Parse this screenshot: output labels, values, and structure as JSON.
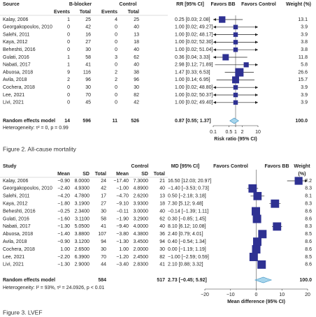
{
  "chart_data": [
    {
      "type": "forest",
      "caption": "Figure 2. All-cause mortality",
      "headers": {
        "study": "Source",
        "group1": "B-blocker",
        "group2": "Control",
        "effect": "RR [95% CI]",
        "favors_left": "Favors BB",
        "favors_right": "Favors Control",
        "weight": "Weight (%)"
      },
      "subheaders": [
        "Events",
        "Total",
        "Events",
        "Total"
      ],
      "studies": [
        {
          "name": "Kalay, 2006",
          "cells": [
            1,
            25,
            4,
            25
          ],
          "estimate": 0.25,
          "lower": 0.03,
          "upper": 2.08,
          "label": "0.25 [0.03; 2.08]",
          "weight": 13.1
        },
        {
          "name": "Georgakopoulos, 2010",
          "cells": [
            0,
            42,
            0,
            40
          ],
          "estimate": 1,
          "lower": 0.02,
          "upper": 49.27,
          "label": "1.00 [0.02; 49.27]",
          "weight": 3.9
        },
        {
          "name": "Salehi, 2011",
          "cells": [
            0,
            16,
            0,
            13
          ],
          "estimate": 1,
          "lower": 0.02,
          "upper": 48.17,
          "label": "1.00 [0.02; 48.17]",
          "weight": 3.9
        },
        {
          "name": "Kaya, 2012",
          "cells": [
            0,
            27,
            0,
            18
          ],
          "estimate": 1,
          "lower": 0.02,
          "upper": 52.3,
          "label": "1.00 [0.02; 52.30]",
          "weight": 3.8
        },
        {
          "name": "Beheshti, 2016",
          "cells": [
            0,
            30,
            0,
            40
          ],
          "estimate": 1,
          "lower": 0.02,
          "upper": 51.04,
          "label": "1.00 [0.02; 51.04]",
          "weight": 3.8
        },
        {
          "name": "Gulati, 2016",
          "cells": [
            1,
            58,
            3,
            62
          ],
          "estimate": 0.36,
          "lower": 0.04,
          "upper": 3.33,
          "label": "0.36 [0.04; 3.33]",
          "weight": 11.8
        },
        {
          "name": "Nabati, 2017",
          "cells": [
            1,
            41,
            0,
            40
          ],
          "estimate": 2.98,
          "lower": 0.12,
          "upper": 71.89,
          "label": "2.98 [0.12; 71.89]",
          "weight": 5.8
        },
        {
          "name": "Abuosa, 2018",
          "cells": [
            9,
            116,
            2,
            38
          ],
          "estimate": 1.47,
          "lower": 0.33,
          "upper": 6.53,
          "label": "1.47 [0.33; 6.53]",
          "weight": 26.6
        },
        {
          "name": "Avila, 2018",
          "cells": [
            2,
            96,
            2,
            96
          ],
          "estimate": 1,
          "lower": 0.14,
          "upper": 6.95,
          "label": "1.00 [0.14; 6.95]",
          "weight": 15.7
        },
        {
          "name": "Cochera, 2018",
          "cells": [
            0,
            30,
            0,
            30
          ],
          "estimate": 1,
          "lower": 0.02,
          "upper": 48.8,
          "label": "1.00 [0.02; 48.80]",
          "weight": 3.9
        },
        {
          "name": "Lee, 2021",
          "cells": [
            0,
            70,
            0,
            82
          ],
          "estimate": 1,
          "lower": 0.02,
          "upper": 50.37,
          "label": "1.00 [0.02; 50.37]",
          "weight": 3.9
        },
        {
          "name": "Livi, 2021",
          "cells": [
            0,
            45,
            0,
            42
          ],
          "estimate": 1,
          "lower": 0.02,
          "upper": 49.4,
          "label": "1.00 [0.02; 49.40]",
          "weight": 3.9
        }
      ],
      "pooled": {
        "name": "Random effects model",
        "cells": [
          14,
          596,
          11,
          526
        ],
        "estimate": 0.87,
        "lower": 0.55,
        "upper": 1.37,
        "label": "0.87 [0.55; 1.37]",
        "weight": {
          "value": 100,
          "label": "100.0"
        }
      },
      "heterogeneity": "Heterogeneity: τ² = 0, p = 0.99",
      "xlabel": "Risk ratio (95% CI)",
      "log_scale": true,
      "xlim": [
        0.1,
        10
      ],
      "xticks": [
        0.1,
        0.5,
        1,
        2,
        10
      ],
      "reference_line": 1,
      "square_color": "#2e3192",
      "diamond_color": "#a6d5ec"
    },
    {
      "type": "forest",
      "caption": "Figure 3. LVEF",
      "headers": {
        "study": "Study",
        "group2": "Control",
        "effect": "MD [95% CI]",
        "favors_left": "Favors Control",
        "favors_right": "Favors BB",
        "weight": "Weight",
        "weight_unit": "(%)"
      },
      "subheaders": [
        "Mean",
        "SD",
        "Total",
        "Mean",
        "SD",
        "Total"
      ],
      "studies": [
        {
          "name": "Kalay, 2006",
          "cells": [
            "−0.90",
            "8.0000",
            24,
            "−17.40",
            "7.3000",
            21
          ],
          "estimate": 16.5,
          "lower": 12.03,
          "upper": 20.97,
          "label": "16.50 [12.03; 20.97]",
          "weight": 7.2
        },
        {
          "name": "Georgakopoulos, 2010",
          "cells": [
            "−2.40",
            "4.9300",
            42,
            "−1.00",
            "4.8900",
            40
          ],
          "estimate": -1.4,
          "lower": -3.53,
          "upper": 0.73,
          "label": "−1.40 [−3.53; 0.73]",
          "weight": 8.3
        },
        {
          "name": "Salehi, 2011",
          "cells": [
            "−4.20",
            "4.7800",
            17,
            "−4.70",
            "2.6200",
            13
          ],
          "estimate": 0.5,
          "lower": -2.18,
          "upper": 3.18,
          "label": "0.50 [−2.18; 3.18]",
          "weight": 8.1
        },
        {
          "name": "Kaya, 2012",
          "cells": [
            "−1.80",
            "3.1900",
            27,
            "−9.10",
            "3.9300",
            18
          ],
          "estimate": 7.3,
          "lower": 5.12,
          "upper": 9.48,
          "label": "7.30 [5.12; 9.48]",
          "weight": 8.3
        },
        {
          "name": "Beheshti, 2016",
          "cells": [
            "−0.25",
            "2.3400",
            30,
            "−0.11",
            "3.0000",
            40
          ],
          "estimate": -0.14,
          "lower": -1.39,
          "upper": 1.11,
          "label": "−0.14 [−1.39; 1.11]",
          "weight": 8.6
        },
        {
          "name": "Gulati, 2016",
          "cells": [
            "−1.60",
            "3.1100",
            58,
            "−1.90",
            "3.2900",
            62
          ],
          "estimate": 0.3,
          "lower": -0.85,
          "upper": 1.45,
          "label": "0.30 [−0.85; 1.45]",
          "weight": 8.6
        },
        {
          "name": "Nabati, 2017",
          "cells": [
            "−1.30",
            "5.0500",
            41,
            "−9.40",
            "4.0000",
            40
          ],
          "estimate": 8.1,
          "lower": 6.12,
          "upper": 10.08,
          "label": "8.10 [6.12; 10.08]",
          "weight": 8.3
        },
        {
          "name": "Abuosa, 2018",
          "cells": [
            "−1.40",
            "3.8800",
            107,
            "−3.80",
            "4.3800",
            36
          ],
          "estimate": 2.4,
          "lower": 0.79,
          "upper": 4.01,
          "label": "2.40 [0.79; 4.01]",
          "weight": 8.5
        },
        {
          "name": "Avila, 2018",
          "cells": [
            "−0.90",
            "3.1200",
            94,
            "−1.30",
            "3.4500",
            94
          ],
          "estimate": 0.4,
          "lower": -0.54,
          "upper": 1.34,
          "label": "0.40 [−0.54; 1.34]",
          "weight": 8.6
        },
        {
          "name": "Cochera, 2018",
          "cells": [
            "1.00",
            "2.6500",
            30,
            "1.00",
            "2.0000",
            30
          ],
          "estimate": 0,
          "lower": -1.19,
          "upper": 1.19,
          "label": "0.00 [−1.19; 1.19]",
          "weight": 8.6
        },
        {
          "name": "Lee, 2021",
          "cells": [
            "−2.20",
            "6.3900",
            70,
            "−1.20",
            "2.4500",
            82
          ],
          "estimate": -1,
          "lower": -2.59,
          "upper": 0.59,
          "label": "−1.00 [−2.59; 0.59]",
          "weight": 8.5
        },
        {
          "name": "Livi, 2021",
          "cells": [
            "−1.30",
            "2.9000",
            44,
            "−3.40",
            "2.8300",
            41
          ],
          "estimate": 2.1,
          "lower": 0.88,
          "upper": 3.32,
          "label": "2.10 [0.88; 3.32]",
          "weight": 8.6
        }
      ],
      "pooled": {
        "name": "Random effects model",
        "cells": [
          null,
          null,
          584,
          null,
          null,
          517
        ],
        "estimate": 2.73,
        "lower": -0.45,
        "upper": 5.92,
        "label": "2.73 [−0.45; 5.92]",
        "weight": {
          "value": 100,
          "label": "100.0"
        }
      },
      "heterogeneity": "Heterogeneity: I² = 93%, τ² = 24.0926, p < 0.01",
      "xlabel": "Mean difference (95% CI)",
      "log_scale": false,
      "xlim": [
        -20,
        20
      ],
      "xticks": [
        {
          "value": -20,
          "label": "−20"
        },
        {
          "value": -10,
          "label": "−10"
        },
        0,
        10,
        20
      ],
      "reference_line": 0,
      "square_color": "#2e3192",
      "diamond_color": "#a6d5ec"
    }
  ]
}
